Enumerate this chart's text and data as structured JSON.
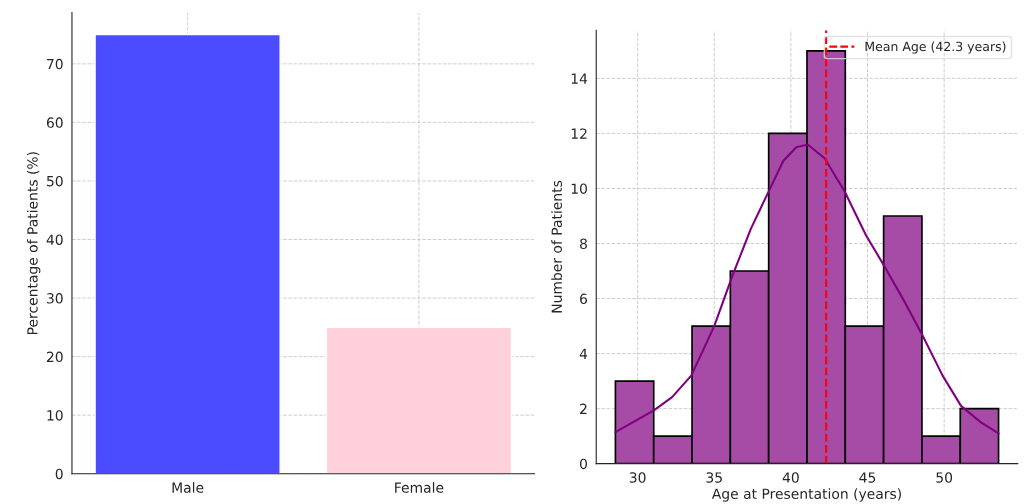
{
  "chart_data": [
    {
      "type": "bar",
      "categories": [
        "Male",
        "Female"
      ],
      "values": [
        75,
        25
      ],
      "colors": [
        "#4b4bff",
        "#ffd1da"
      ],
      "ylabel": "Percentage of Patients (%)",
      "ylim": [
        0,
        78.75
      ],
      "yticks": [
        0,
        10,
        20,
        30,
        40,
        50,
        60,
        70
      ],
      "grid": true
    },
    {
      "type": "histogram",
      "bins": [
        28.55,
        31.05,
        33.55,
        36.05,
        38.55,
        41.05,
        43.55,
        46.05,
        48.55,
        51.05,
        53.55
      ],
      "values": [
        3,
        1,
        5,
        7,
        12,
        15,
        5,
        9,
        1,
        2
      ],
      "color": "#a64ca6",
      "series": [
        {
          "type": "line",
          "color": "#800080",
          "x": [
            28.55,
            31.06,
            32.25,
            33.5,
            35,
            36.2,
            37.4,
            38.6,
            39.5,
            40.35,
            41.1,
            42.2,
            43.5,
            44.9,
            46.0,
            47.4,
            48.6,
            49.9,
            51.1,
            52.4,
            53.55
          ],
          "values": [
            1.15,
            1.94,
            2.42,
            3.2,
            5.0,
            6.85,
            8.55,
            9.95,
            11.0,
            11.5,
            11.6,
            11.1,
            9.9,
            8.3,
            7.27,
            5.9,
            4.65,
            3.2,
            2.1,
            1.5,
            1.1
          ]
        }
      ],
      "ref_lines": [
        {
          "axis": "x",
          "value": 42.3,
          "label": "Mean Age (42.3 years)",
          "color": "#ff0000",
          "line_style": "dashed"
        }
      ],
      "xlabel": "Age at Presentation (years)",
      "ylabel": "Number of Patients",
      "xlim": [
        27.3,
        54.8
      ],
      "xticks": [
        30,
        35,
        40,
        45,
        50
      ],
      "ylim": [
        0,
        15.75
      ],
      "yticks": [
        0,
        2,
        4,
        6,
        8,
        10,
        12,
        14
      ],
      "grid": true,
      "legend": "top right"
    }
  ]
}
